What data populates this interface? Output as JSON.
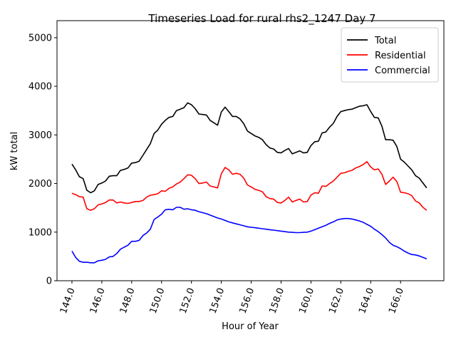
{
  "chart_data": {
    "type": "line",
    "title": "Timeseries Load for rural rhs2_1247  Day 7",
    "xlabel": "Hour of Year",
    "ylabel": "kW total",
    "xlim": [
      143.0,
      168.9
    ],
    "ylim": [
      0,
      5350
    ],
    "xticks": [
      144,
      146,
      148,
      150,
      152,
      154,
      156,
      158,
      160,
      162,
      164,
      166
    ],
    "xtick_labels": [
      "144.0",
      "146.0",
      "148.0",
      "150.0",
      "152.0",
      "154.0",
      "156.0",
      "158.0",
      "160.0",
      "162.0",
      "164.0",
      "166.0"
    ],
    "yticks": [
      0,
      1000,
      2000,
      3000,
      4000,
      5000
    ],
    "ytick_labels": [
      "0",
      "1000",
      "2000",
      "3000",
      "4000",
      "5000"
    ],
    "grid": false,
    "legend_position": "top-right",
    "series": [
      {
        "name": "Total",
        "color": "#000000",
        "points": [
          [
            144.0,
            2400
          ],
          [
            144.25,
            2280
          ],
          [
            144.5,
            2140
          ],
          [
            144.75,
            2100
          ],
          [
            145.0,
            1860
          ],
          [
            145.25,
            1810
          ],
          [
            145.5,
            1850
          ],
          [
            145.75,
            1980
          ],
          [
            146.0,
            2010
          ],
          [
            146.25,
            2050
          ],
          [
            146.5,
            2150
          ],
          [
            146.75,
            2160
          ],
          [
            147.0,
            2160
          ],
          [
            147.25,
            2270
          ],
          [
            147.5,
            2290
          ],
          [
            147.75,
            2320
          ],
          [
            148.0,
            2420
          ],
          [
            148.25,
            2430
          ],
          [
            148.5,
            2460
          ],
          [
            148.75,
            2580
          ],
          [
            149.0,
            2700
          ],
          [
            149.25,
            2820
          ],
          [
            149.5,
            3030
          ],
          [
            149.75,
            3100
          ],
          [
            150.0,
            3220
          ],
          [
            150.25,
            3300
          ],
          [
            150.5,
            3360
          ],
          [
            150.75,
            3380
          ],
          [
            151.0,
            3500
          ],
          [
            151.25,
            3530
          ],
          [
            151.5,
            3560
          ],
          [
            151.75,
            3660
          ],
          [
            152.0,
            3620
          ],
          [
            152.25,
            3540
          ],
          [
            152.5,
            3430
          ],
          [
            152.75,
            3420
          ],
          [
            153.0,
            3410
          ],
          [
            153.25,
            3300
          ],
          [
            153.5,
            3250
          ],
          [
            153.75,
            3200
          ],
          [
            154.0,
            3470
          ],
          [
            154.25,
            3570
          ],
          [
            154.5,
            3480
          ],
          [
            154.75,
            3380
          ],
          [
            155.0,
            3380
          ],
          [
            155.25,
            3330
          ],
          [
            155.5,
            3230
          ],
          [
            155.75,
            3080
          ],
          [
            156.0,
            3030
          ],
          [
            156.25,
            2980
          ],
          [
            156.5,
            2950
          ],
          [
            156.75,
            2900
          ],
          [
            157.0,
            2800
          ],
          [
            157.25,
            2730
          ],
          [
            157.5,
            2710
          ],
          [
            157.75,
            2640
          ],
          [
            158.0,
            2630
          ],
          [
            158.25,
            2680
          ],
          [
            158.5,
            2720
          ],
          [
            158.75,
            2610
          ],
          [
            159.0,
            2640
          ],
          [
            159.25,
            2670
          ],
          [
            159.5,
            2630
          ],
          [
            159.75,
            2640
          ],
          [
            160.0,
            2780
          ],
          [
            160.25,
            2860
          ],
          [
            160.5,
            2870
          ],
          [
            160.75,
            3040
          ],
          [
            161.0,
            3060
          ],
          [
            161.25,
            3160
          ],
          [
            161.5,
            3240
          ],
          [
            161.75,
            3380
          ],
          [
            162.0,
            3480
          ],
          [
            162.25,
            3500
          ],
          [
            162.5,
            3520
          ],
          [
            162.75,
            3530
          ],
          [
            163.0,
            3560
          ],
          [
            163.25,
            3590
          ],
          [
            163.5,
            3600
          ],
          [
            163.75,
            3620
          ],
          [
            164.0,
            3480
          ],
          [
            164.25,
            3360
          ],
          [
            164.5,
            3350
          ],
          [
            164.75,
            3180
          ],
          [
            165.0,
            2900
          ],
          [
            165.25,
            2900
          ],
          [
            165.5,
            2890
          ],
          [
            165.75,
            2760
          ],
          [
            166.0,
            2500
          ],
          [
            166.25,
            2440
          ],
          [
            166.5,
            2360
          ],
          [
            166.75,
            2280
          ],
          [
            167.0,
            2160
          ],
          [
            167.25,
            2110
          ],
          [
            167.5,
            2010
          ],
          [
            167.75,
            1910
          ]
        ]
      },
      {
        "name": "Residential",
        "color": "#ff0000",
        "points": [
          [
            144.0,
            1800
          ],
          [
            144.25,
            1770
          ],
          [
            144.5,
            1730
          ],
          [
            144.75,
            1720
          ],
          [
            145.0,
            1480
          ],
          [
            145.25,
            1450
          ],
          [
            145.5,
            1480
          ],
          [
            145.75,
            1560
          ],
          [
            146.0,
            1580
          ],
          [
            146.25,
            1610
          ],
          [
            146.5,
            1660
          ],
          [
            146.75,
            1660
          ],
          [
            147.0,
            1600
          ],
          [
            147.25,
            1620
          ],
          [
            147.5,
            1600
          ],
          [
            147.75,
            1590
          ],
          [
            148.0,
            1610
          ],
          [
            148.25,
            1630
          ],
          [
            148.5,
            1630
          ],
          [
            148.75,
            1650
          ],
          [
            149.0,
            1720
          ],
          [
            149.25,
            1760
          ],
          [
            149.5,
            1770
          ],
          [
            149.75,
            1790
          ],
          [
            150.0,
            1850
          ],
          [
            150.25,
            1840
          ],
          [
            150.5,
            1900
          ],
          [
            150.75,
            1930
          ],
          [
            151.0,
            1990
          ],
          [
            151.25,
            2030
          ],
          [
            151.5,
            2100
          ],
          [
            151.75,
            2180
          ],
          [
            152.0,
            2170
          ],
          [
            152.25,
            2100
          ],
          [
            152.5,
            2000
          ],
          [
            152.75,
            2010
          ],
          [
            153.0,
            2030
          ],
          [
            153.25,
            1950
          ],
          [
            153.5,
            1930
          ],
          [
            153.75,
            1910
          ],
          [
            154.0,
            2200
          ],
          [
            154.25,
            2330
          ],
          [
            154.5,
            2280
          ],
          [
            154.75,
            2190
          ],
          [
            155.0,
            2210
          ],
          [
            155.25,
            2190
          ],
          [
            155.5,
            2110
          ],
          [
            155.75,
            1970
          ],
          [
            156.0,
            1930
          ],
          [
            156.25,
            1880
          ],
          [
            156.5,
            1860
          ],
          [
            156.75,
            1830
          ],
          [
            157.0,
            1730
          ],
          [
            157.25,
            1690
          ],
          [
            157.5,
            1680
          ],
          [
            157.75,
            1610
          ],
          [
            158.0,
            1600
          ],
          [
            158.25,
            1650
          ],
          [
            158.5,
            1720
          ],
          [
            158.75,
            1620
          ],
          [
            159.0,
            1650
          ],
          [
            159.25,
            1680
          ],
          [
            159.5,
            1620
          ],
          [
            159.75,
            1630
          ],
          [
            160.0,
            1760
          ],
          [
            160.25,
            1810
          ],
          [
            160.5,
            1800
          ],
          [
            160.75,
            1950
          ],
          [
            161.0,
            1940
          ],
          [
            161.25,
            2000
          ],
          [
            161.5,
            2050
          ],
          [
            161.75,
            2130
          ],
          [
            162.0,
            2210
          ],
          [
            162.25,
            2220
          ],
          [
            162.5,
            2250
          ],
          [
            162.75,
            2270
          ],
          [
            163.0,
            2320
          ],
          [
            163.25,
            2350
          ],
          [
            163.5,
            2390
          ],
          [
            163.75,
            2450
          ],
          [
            164.0,
            2340
          ],
          [
            164.25,
            2280
          ],
          [
            164.5,
            2300
          ],
          [
            164.75,
            2190
          ],
          [
            165.0,
            1980
          ],
          [
            165.25,
            2050
          ],
          [
            165.5,
            2130
          ],
          [
            165.75,
            2040
          ],
          [
            166.0,
            1820
          ],
          [
            166.25,
            1810
          ],
          [
            166.5,
            1790
          ],
          [
            166.75,
            1750
          ],
          [
            167.0,
            1640
          ],
          [
            167.25,
            1600
          ],
          [
            167.5,
            1510
          ],
          [
            167.75,
            1450
          ]
        ]
      },
      {
        "name": "Commercial",
        "color": "#0000ff",
        "points": [
          [
            144.0,
            610
          ],
          [
            144.25,
            480
          ],
          [
            144.5,
            400
          ],
          [
            144.75,
            380
          ],
          [
            145.0,
            380
          ],
          [
            145.25,
            370
          ],
          [
            145.5,
            370
          ],
          [
            145.75,
            410
          ],
          [
            146.0,
            420
          ],
          [
            146.25,
            440
          ],
          [
            146.5,
            490
          ],
          [
            146.75,
            500
          ],
          [
            147.0,
            560
          ],
          [
            147.25,
            650
          ],
          [
            147.5,
            690
          ],
          [
            147.75,
            730
          ],
          [
            148.0,
            810
          ],
          [
            148.25,
            810
          ],
          [
            148.5,
            830
          ],
          [
            148.75,
            930
          ],
          [
            149.0,
            980
          ],
          [
            149.25,
            1060
          ],
          [
            149.5,
            1260
          ],
          [
            149.75,
            1310
          ],
          [
            150.0,
            1370
          ],
          [
            150.25,
            1460
          ],
          [
            150.5,
            1470
          ],
          [
            150.75,
            1460
          ],
          [
            151.0,
            1510
          ],
          [
            151.25,
            1510
          ],
          [
            151.5,
            1470
          ],
          [
            151.75,
            1480
          ],
          [
            152.0,
            1460
          ],
          [
            152.25,
            1450
          ],
          [
            152.5,
            1420
          ],
          [
            152.75,
            1400
          ],
          [
            153.0,
            1380
          ],
          [
            153.25,
            1350
          ],
          [
            153.5,
            1320
          ],
          [
            153.75,
            1290
          ],
          [
            154.0,
            1270
          ],
          [
            154.25,
            1240
          ],
          [
            154.5,
            1210
          ],
          [
            154.75,
            1190
          ],
          [
            155.0,
            1170
          ],
          [
            155.25,
            1150
          ],
          [
            155.5,
            1130
          ],
          [
            155.75,
            1110
          ],
          [
            156.0,
            1100
          ],
          [
            156.25,
            1090
          ],
          [
            156.5,
            1080
          ],
          [
            156.75,
            1070
          ],
          [
            157.0,
            1060
          ],
          [
            157.25,
            1050
          ],
          [
            157.5,
            1040
          ],
          [
            157.75,
            1030
          ],
          [
            158.0,
            1020
          ],
          [
            158.25,
            1010
          ],
          [
            158.5,
            1000
          ],
          [
            158.75,
            995
          ],
          [
            159.0,
            990
          ],
          [
            159.25,
            990
          ],
          [
            159.5,
            995
          ],
          [
            159.75,
            1000
          ],
          [
            160.0,
            1020
          ],
          [
            160.25,
            1050
          ],
          [
            160.5,
            1080
          ],
          [
            160.75,
            1110
          ],
          [
            161.0,
            1140
          ],
          [
            161.25,
            1180
          ],
          [
            161.5,
            1210
          ],
          [
            161.75,
            1250
          ],
          [
            162.0,
            1270
          ],
          [
            162.25,
            1280
          ],
          [
            162.5,
            1280
          ],
          [
            162.75,
            1270
          ],
          [
            163.0,
            1250
          ],
          [
            163.25,
            1230
          ],
          [
            163.5,
            1200
          ],
          [
            163.75,
            1160
          ],
          [
            164.0,
            1120
          ],
          [
            164.25,
            1060
          ],
          [
            164.5,
            1010
          ],
          [
            164.75,
            950
          ],
          [
            165.0,
            880
          ],
          [
            165.25,
            790
          ],
          [
            165.5,
            730
          ],
          [
            165.75,
            700
          ],
          [
            166.0,
            660
          ],
          [
            166.25,
            610
          ],
          [
            166.5,
            570
          ],
          [
            166.75,
            540
          ],
          [
            167.0,
            530
          ],
          [
            167.25,
            510
          ],
          [
            167.5,
            480
          ],
          [
            167.75,
            450
          ]
        ]
      }
    ]
  }
}
